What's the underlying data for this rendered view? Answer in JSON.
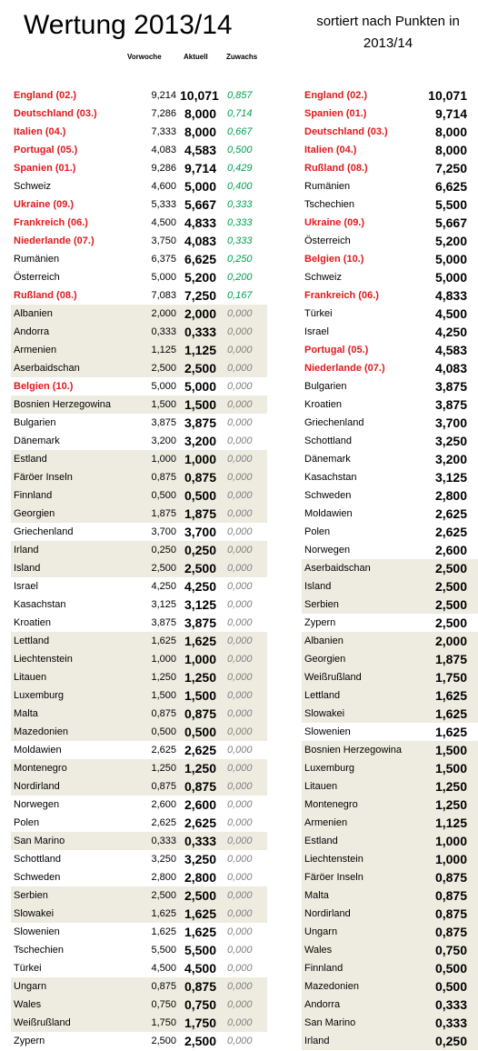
{
  "title": "Wertung 2013/14",
  "subtitle": "sortiert nach Punkten in 2013/14",
  "headers": {
    "prev": "Vorwoche",
    "current": "Aktuell",
    "gain": "Zuwachs"
  },
  "left_rows": [
    {
      "name": "England (02.)",
      "prev": "9,214",
      "cur": "10,071",
      "gain": "0,857",
      "hl": true,
      "shade": false
    },
    {
      "name": "Deutschland (03.)",
      "prev": "7,286",
      "cur": "8,000",
      "gain": "0,714",
      "hl": true,
      "shade": false
    },
    {
      "name": "Italien (04.)",
      "prev": "7,333",
      "cur": "8,000",
      "gain": "0,667",
      "hl": true,
      "shade": false
    },
    {
      "name": "Portugal (05.)",
      "prev": "4,083",
      "cur": "4,583",
      "gain": "0,500",
      "hl": true,
      "shade": false
    },
    {
      "name": "Spanien (01.)",
      "prev": "9,286",
      "cur": "9,714",
      "gain": "0,429",
      "hl": true,
      "shade": false
    },
    {
      "name": "Schweiz",
      "prev": "4,600",
      "cur": "5,000",
      "gain": "0,400",
      "hl": false,
      "shade": false
    },
    {
      "name": "Ukraine (09.)",
      "prev": "5,333",
      "cur": "5,667",
      "gain": "0,333",
      "hl": true,
      "shade": false
    },
    {
      "name": "Frankreich (06.)",
      "prev": "4,500",
      "cur": "4,833",
      "gain": "0,333",
      "hl": true,
      "shade": false
    },
    {
      "name": "Niederlande (07.)",
      "prev": "3,750",
      "cur": "4,083",
      "gain": "0,333",
      "hl": true,
      "shade": false
    },
    {
      "name": "Rumänien",
      "prev": "6,375",
      "cur": "6,625",
      "gain": "0,250",
      "hl": false,
      "shade": false
    },
    {
      "name": "Österreich",
      "prev": "5,000",
      "cur": "5,200",
      "gain": "0,200",
      "hl": false,
      "shade": false
    },
    {
      "name": "Rußland (08.)",
      "prev": "7,083",
      "cur": "7,250",
      "gain": "0,167",
      "hl": true,
      "shade": false
    },
    {
      "name": "Albanien",
      "prev": "2,000",
      "cur": "2,000",
      "gain": "0,000",
      "hl": false,
      "shade": true
    },
    {
      "name": "Andorra",
      "prev": "0,333",
      "cur": "0,333",
      "gain": "0,000",
      "hl": false,
      "shade": true
    },
    {
      "name": "Armenien",
      "prev": "1,125",
      "cur": "1,125",
      "gain": "0,000",
      "hl": false,
      "shade": true
    },
    {
      "name": "Aserbaidschan",
      "prev": "2,500",
      "cur": "2,500",
      "gain": "0,000",
      "hl": false,
      "shade": true
    },
    {
      "name": "Belgien (10.)",
      "prev": "5,000",
      "cur": "5,000",
      "gain": "0,000",
      "hl": true,
      "shade": false
    },
    {
      "name": "Bosnien Herzegowina",
      "prev": "1,500",
      "cur": "1,500",
      "gain": "0,000",
      "hl": false,
      "shade": true
    },
    {
      "name": "Bulgarien",
      "prev": "3,875",
      "cur": "3,875",
      "gain": "0,000",
      "hl": false,
      "shade": false
    },
    {
      "name": "Dänemark",
      "prev": "3,200",
      "cur": "3,200",
      "gain": "0,000",
      "hl": false,
      "shade": false
    },
    {
      "name": "Estland",
      "prev": "1,000",
      "cur": "1,000",
      "gain": "0,000",
      "hl": false,
      "shade": true
    },
    {
      "name": "Färöer Inseln",
      "prev": "0,875",
      "cur": "0,875",
      "gain": "0,000",
      "hl": false,
      "shade": true
    },
    {
      "name": "Finnland",
      "prev": "0,500",
      "cur": "0,500",
      "gain": "0,000",
      "hl": false,
      "shade": true
    },
    {
      "name": "Georgien",
      "prev": "1,875",
      "cur": "1,875",
      "gain": "0,000",
      "hl": false,
      "shade": true
    },
    {
      "name": "Griechenland",
      "prev": "3,700",
      "cur": "3,700",
      "gain": "0,000",
      "hl": false,
      "shade": false
    },
    {
      "name": "Irland",
      "prev": "0,250",
      "cur": "0,250",
      "gain": "0,000",
      "hl": false,
      "shade": true
    },
    {
      "name": "Island",
      "prev": "2,500",
      "cur": "2,500",
      "gain": "0,000",
      "hl": false,
      "shade": true
    },
    {
      "name": "Israel",
      "prev": "4,250",
      "cur": "4,250",
      "gain": "0,000",
      "hl": false,
      "shade": false
    },
    {
      "name": "Kasachstan",
      "prev": "3,125",
      "cur": "3,125",
      "gain": "0,000",
      "hl": false,
      "shade": false
    },
    {
      "name": "Kroatien",
      "prev": "3,875",
      "cur": "3,875",
      "gain": "0,000",
      "hl": false,
      "shade": false
    },
    {
      "name": "Lettland",
      "prev": "1,625",
      "cur": "1,625",
      "gain": "0,000",
      "hl": false,
      "shade": true
    },
    {
      "name": "Liechtenstein",
      "prev": "1,000",
      "cur": "1,000",
      "gain": "0,000",
      "hl": false,
      "shade": true
    },
    {
      "name": "Litauen",
      "prev": "1,250",
      "cur": "1,250",
      "gain": "0,000",
      "hl": false,
      "shade": true
    },
    {
      "name": "Luxemburg",
      "prev": "1,500",
      "cur": "1,500",
      "gain": "0,000",
      "hl": false,
      "shade": true
    },
    {
      "name": "Malta",
      "prev": "0,875",
      "cur": "0,875",
      "gain": "0,000",
      "hl": false,
      "shade": true
    },
    {
      "name": "Mazedonien",
      "prev": "0,500",
      "cur": "0,500",
      "gain": "0,000",
      "hl": false,
      "shade": true
    },
    {
      "name": "Moldawien",
      "prev": "2,625",
      "cur": "2,625",
      "gain": "0,000",
      "hl": false,
      "shade": false
    },
    {
      "name": "Montenegro",
      "prev": "1,250",
      "cur": "1,250",
      "gain": "0,000",
      "hl": false,
      "shade": true
    },
    {
      "name": "Nordirland",
      "prev": "0,875",
      "cur": "0,875",
      "gain": "0,000",
      "hl": false,
      "shade": true
    },
    {
      "name": "Norwegen",
      "prev": "2,600",
      "cur": "2,600",
      "gain": "0,000",
      "hl": false,
      "shade": false
    },
    {
      "name": "Polen",
      "prev": "2,625",
      "cur": "2,625",
      "gain": "0,000",
      "hl": false,
      "shade": false
    },
    {
      "name": "San Marino",
      "prev": "0,333",
      "cur": "0,333",
      "gain": "0,000",
      "hl": false,
      "shade": true
    },
    {
      "name": "Schottland",
      "prev": "3,250",
      "cur": "3,250",
      "gain": "0,000",
      "hl": false,
      "shade": false
    },
    {
      "name": "Schweden",
      "prev": "2,800",
      "cur": "2,800",
      "gain": "0,000",
      "hl": false,
      "shade": false
    },
    {
      "name": "Serbien",
      "prev": "2,500",
      "cur": "2,500",
      "gain": "0,000",
      "hl": false,
      "shade": true
    },
    {
      "name": "Slowakei",
      "prev": "1,625",
      "cur": "1,625",
      "gain": "0,000",
      "hl": false,
      "shade": true
    },
    {
      "name": "Slowenien",
      "prev": "1,625",
      "cur": "1,625",
      "gain": "0,000",
      "hl": false,
      "shade": false
    },
    {
      "name": "Tschechien",
      "prev": "5,500",
      "cur": "5,500",
      "gain": "0,000",
      "hl": false,
      "shade": false
    },
    {
      "name": "Türkei",
      "prev": "4,500",
      "cur": "4,500",
      "gain": "0,000",
      "hl": false,
      "shade": false
    },
    {
      "name": "Ungarn",
      "prev": "0,875",
      "cur": "0,875",
      "gain": "0,000",
      "hl": false,
      "shade": true
    },
    {
      "name": "Wales",
      "prev": "0,750",
      "cur": "0,750",
      "gain": "0,000",
      "hl": false,
      "shade": true
    },
    {
      "name": "Weißrußland",
      "prev": "1,750",
      "cur": "1,750",
      "gain": "0,000",
      "hl": false,
      "shade": true
    },
    {
      "name": "Zypern",
      "prev": "2,500",
      "cur": "2,500",
      "gain": "0,000",
      "hl": false,
      "shade": false
    }
  ],
  "right_rows": [
    {
      "name": "England (02.)",
      "cur": "10,071",
      "hl": true,
      "shade": false
    },
    {
      "name": "Spanien (01.)",
      "cur": "9,714",
      "hl": true,
      "shade": false
    },
    {
      "name": "Deutschland (03.)",
      "cur": "8,000",
      "hl": true,
      "shade": false
    },
    {
      "name": "Italien (04.)",
      "cur": "8,000",
      "hl": true,
      "shade": false
    },
    {
      "name": "Rußland (08.)",
      "cur": "7,250",
      "hl": true,
      "shade": false
    },
    {
      "name": "Rumänien",
      "cur": "6,625",
      "hl": false,
      "shade": false
    },
    {
      "name": "Tschechien",
      "cur": "5,500",
      "hl": false,
      "shade": false
    },
    {
      "name": "Ukraine (09.)",
      "cur": "5,667",
      "hl": true,
      "shade": false
    },
    {
      "name": "Österreich",
      "cur": "5,200",
      "hl": false,
      "shade": false
    },
    {
      "name": "Belgien (10.)",
      "cur": "5,000",
      "hl": true,
      "shade": false
    },
    {
      "name": "Schweiz",
      "cur": "5,000",
      "hl": false,
      "shade": false
    },
    {
      "name": "Frankreich (06.)",
      "cur": "4,833",
      "hl": true,
      "shade": false
    },
    {
      "name": "Türkei",
      "cur": "4,500",
      "hl": false,
      "shade": false
    },
    {
      "name": "Israel",
      "cur": "4,250",
      "hl": false,
      "shade": false
    },
    {
      "name": "Portugal (05.)",
      "cur": "4,583",
      "hl": true,
      "shade": false
    },
    {
      "name": "Niederlande (07.)",
      "cur": "4,083",
      "hl": true,
      "shade": false
    },
    {
      "name": "Bulgarien",
      "cur": "3,875",
      "hl": false,
      "shade": false
    },
    {
      "name": "Kroatien",
      "cur": "3,875",
      "hl": false,
      "shade": false
    },
    {
      "name": "Griechenland",
      "cur": "3,700",
      "hl": false,
      "shade": false
    },
    {
      "name": "Schottland",
      "cur": "3,250",
      "hl": false,
      "shade": false
    },
    {
      "name": "Dänemark",
      "cur": "3,200",
      "hl": false,
      "shade": false
    },
    {
      "name": "Kasachstan",
      "cur": "3,125",
      "hl": false,
      "shade": false
    },
    {
      "name": "Schweden",
      "cur": "2,800",
      "hl": false,
      "shade": false
    },
    {
      "name": "Moldawien",
      "cur": "2,625",
      "hl": false,
      "shade": false
    },
    {
      "name": "Polen",
      "cur": "2,625",
      "hl": false,
      "shade": false
    },
    {
      "name": "Norwegen",
      "cur": "2,600",
      "hl": false,
      "shade": false
    },
    {
      "name": "Aserbaidschan",
      "cur": "2,500",
      "hl": false,
      "shade": true
    },
    {
      "name": "Island",
      "cur": "2,500",
      "hl": false,
      "shade": true
    },
    {
      "name": "Serbien",
      "cur": "2,500",
      "hl": false,
      "shade": true
    },
    {
      "name": "Zypern",
      "cur": "2,500",
      "hl": false,
      "shade": false
    },
    {
      "name": "Albanien",
      "cur": "2,000",
      "hl": false,
      "shade": true
    },
    {
      "name": "Georgien",
      "cur": "1,875",
      "hl": false,
      "shade": true
    },
    {
      "name": "Weißrußland",
      "cur": "1,750",
      "hl": false,
      "shade": true
    },
    {
      "name": "Lettland",
      "cur": "1,625",
      "hl": false,
      "shade": true
    },
    {
      "name": "Slowakei",
      "cur": "1,625",
      "hl": false,
      "shade": true
    },
    {
      "name": "Slowenien",
      "cur": "1,625",
      "hl": false,
      "shade": false
    },
    {
      "name": "Bosnien Herzegowina",
      "cur": "1,500",
      "hl": false,
      "shade": true
    },
    {
      "name": "Luxemburg",
      "cur": "1,500",
      "hl": false,
      "shade": true
    },
    {
      "name": "Litauen",
      "cur": "1,250",
      "hl": false,
      "shade": true
    },
    {
      "name": "Montenegro",
      "cur": "1,250",
      "hl": false,
      "shade": true
    },
    {
      "name": "Armenien",
      "cur": "1,125",
      "hl": false,
      "shade": true
    },
    {
      "name": "Estland",
      "cur": "1,000",
      "hl": false,
      "shade": true
    },
    {
      "name": "Liechtenstein",
      "cur": "1,000",
      "hl": false,
      "shade": true
    },
    {
      "name": "Färöer Inseln",
      "cur": "0,875",
      "hl": false,
      "shade": true
    },
    {
      "name": "Malta",
      "cur": "0,875",
      "hl": false,
      "shade": true
    },
    {
      "name": "Nordirland",
      "cur": "0,875",
      "hl": false,
      "shade": true
    },
    {
      "name": "Ungarn",
      "cur": "0,875",
      "hl": false,
      "shade": true
    },
    {
      "name": "Wales",
      "cur": "0,750",
      "hl": false,
      "shade": true
    },
    {
      "name": "Finnland",
      "cur": "0,500",
      "hl": false,
      "shade": true
    },
    {
      "name": "Mazedonien",
      "cur": "0,500",
      "hl": false,
      "shade": true
    },
    {
      "name": "Andorra",
      "cur": "0,333",
      "hl": false,
      "shade": true
    },
    {
      "name": "San Marino",
      "cur": "0,333",
      "hl": false,
      "shade": true
    },
    {
      "name": "Irland",
      "cur": "0,250",
      "hl": false,
      "shade": true
    }
  ],
  "colors": {
    "highlight": "#e0191b",
    "positive_gain": "#00a050",
    "zero_gain": "#7f7f7f",
    "shade": "#eeece1"
  }
}
